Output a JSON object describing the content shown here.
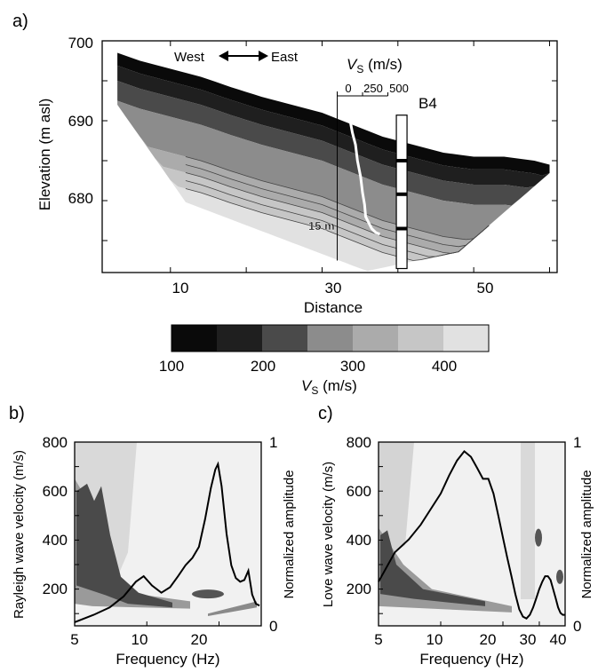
{
  "chart_data": [
    {
      "panel": "a)",
      "type": "heatmap",
      "title": "",
      "xlabel": "Distance",
      "ylabel": "Elevation (m asl)",
      "xlim": [
        1,
        61
      ],
      "ylim": [
        671,
        700
      ],
      "x_ticks": [
        "10",
        "30",
        "50"
      ],
      "y_ticks": [
        "680",
        "690",
        "700"
      ],
      "direction_labels": {
        "west": "West",
        "east": "East"
      },
      "surface_profile": {
        "x": [
          3,
          6,
          10,
          14,
          18,
          22,
          26,
          30,
          34,
          38,
          42,
          46,
          50,
          54,
          58,
          60
        ],
        "elev": [
          698.5,
          697.5,
          696.5,
          695.5,
          694.2,
          693,
          692,
          691,
          689.5,
          688,
          687,
          686,
          685.5,
          685.5,
          685,
          684.5
        ]
      },
      "colorbar": {
        "label_main": "V",
        "label_sub": "S",
        "label_unit": " (m/s)",
        "ticks": [
          "100",
          "200",
          "300",
          "400"
        ],
        "colors": [
          "#0a0a0a",
          "#1f1f1f",
          "#4a4a4a",
          "#8c8c8c",
          "#ababab",
          "#c6c6c6",
          "#e1e1e1"
        ]
      },
      "contour_label": "15 m",
      "borehole": {
        "name": "B4",
        "x": 40.5,
        "top_elev": 690.7,
        "bottom_elev": 671.5,
        "marker_elevs": [
          685,
          680.8,
          676.5
        ]
      },
      "vs_profile": {
        "label_main": "V",
        "label_sub": "S",
        "label_unit": " (m/s)",
        "scale_ticks": [
          "0",
          "250",
          "500"
        ],
        "anchor_x": 32,
        "vs": [
          130,
          150,
          180,
          200,
          230,
          250,
          270,
          280,
          300,
          320,
          340,
          380,
          420
        ],
        "elev": [
          689.8,
          688.5,
          687,
          685,
          683,
          681,
          679.5,
          678,
          677.5,
          677,
          676.5,
          676,
          675.8
        ]
      }
    },
    {
      "panel": "b)",
      "type": "heatmap",
      "xlabel": "Frequency (Hz)",
      "ylabel": "Rayleigh wave velocity (m/s)",
      "y2label": "Normalized amplitude",
      "xlim": [
        5,
        30
      ],
      "ylim": [
        50,
        800
      ],
      "y2lim": [
        0,
        1
      ],
      "x_ticks": [
        "5",
        "10",
        "20"
      ],
      "y_ticks": [
        "200",
        "400",
        "600",
        "800"
      ],
      "y2_ticks": [
        "0",
        "1"
      ],
      "curve": {
        "x": [
          5,
          6,
          7,
          8,
          9,
          9.7,
          10.5,
          11.5,
          12.5,
          13.5,
          14.5,
          15.5,
          16.5,
          17.5,
          18.5,
          19.3,
          19.8,
          20.5,
          21.5,
          22.5,
          23.5,
          24.5,
          25.5,
          26.5,
          27.5,
          28.5,
          29.5
        ],
        "amp": [
          0.02,
          0.06,
          0.1,
          0.16,
          0.24,
          0.27,
          0.22,
          0.18,
          0.21,
          0.27,
          0.33,
          0.37,
          0.43,
          0.58,
          0.75,
          0.85,
          0.88,
          0.76,
          0.5,
          0.33,
          0.26,
          0.24,
          0.25,
          0.3,
          0.17,
          0.12,
          0.11
        ]
      }
    },
    {
      "panel": "c)",
      "type": "heatmap",
      "xlabel": "Frequency (Hz)",
      "ylabel": "Love wave velocity (m/s)",
      "y2label": "Normalized amplitude",
      "xlim": [
        5,
        40
      ],
      "ylim": [
        50,
        800
      ],
      "y2lim": [
        0,
        1
      ],
      "x_ticks": [
        "5",
        "10",
        "20",
        "30",
        "40"
      ],
      "y_ticks": [
        "200",
        "400",
        "600",
        "800"
      ],
      "y2_ticks": [
        "0",
        "1"
      ],
      "curve": {
        "x": [
          5,
          6,
          7,
          8,
          9,
          10,
          11,
          12,
          13,
          14,
          15,
          16,
          17,
          18,
          19,
          20,
          21,
          22,
          23,
          24,
          25,
          26,
          27,
          28,
          29,
          30,
          31,
          32,
          33,
          34,
          35,
          36,
          37,
          38,
          39,
          40
        ],
        "amp": [
          0.24,
          0.4,
          0.47,
          0.55,
          0.64,
          0.72,
          0.82,
          0.9,
          0.95,
          0.92,
          0.86,
          0.8,
          0.8,
          0.72,
          0.6,
          0.48,
          0.37,
          0.27,
          0.17,
          0.09,
          0.05,
          0.04,
          0.06,
          0.1,
          0.15,
          0.2,
          0.24,
          0.27,
          0.27,
          0.25,
          0.2,
          0.15,
          0.1,
          0.07,
          0.06,
          0.06
        ]
      }
    }
  ]
}
